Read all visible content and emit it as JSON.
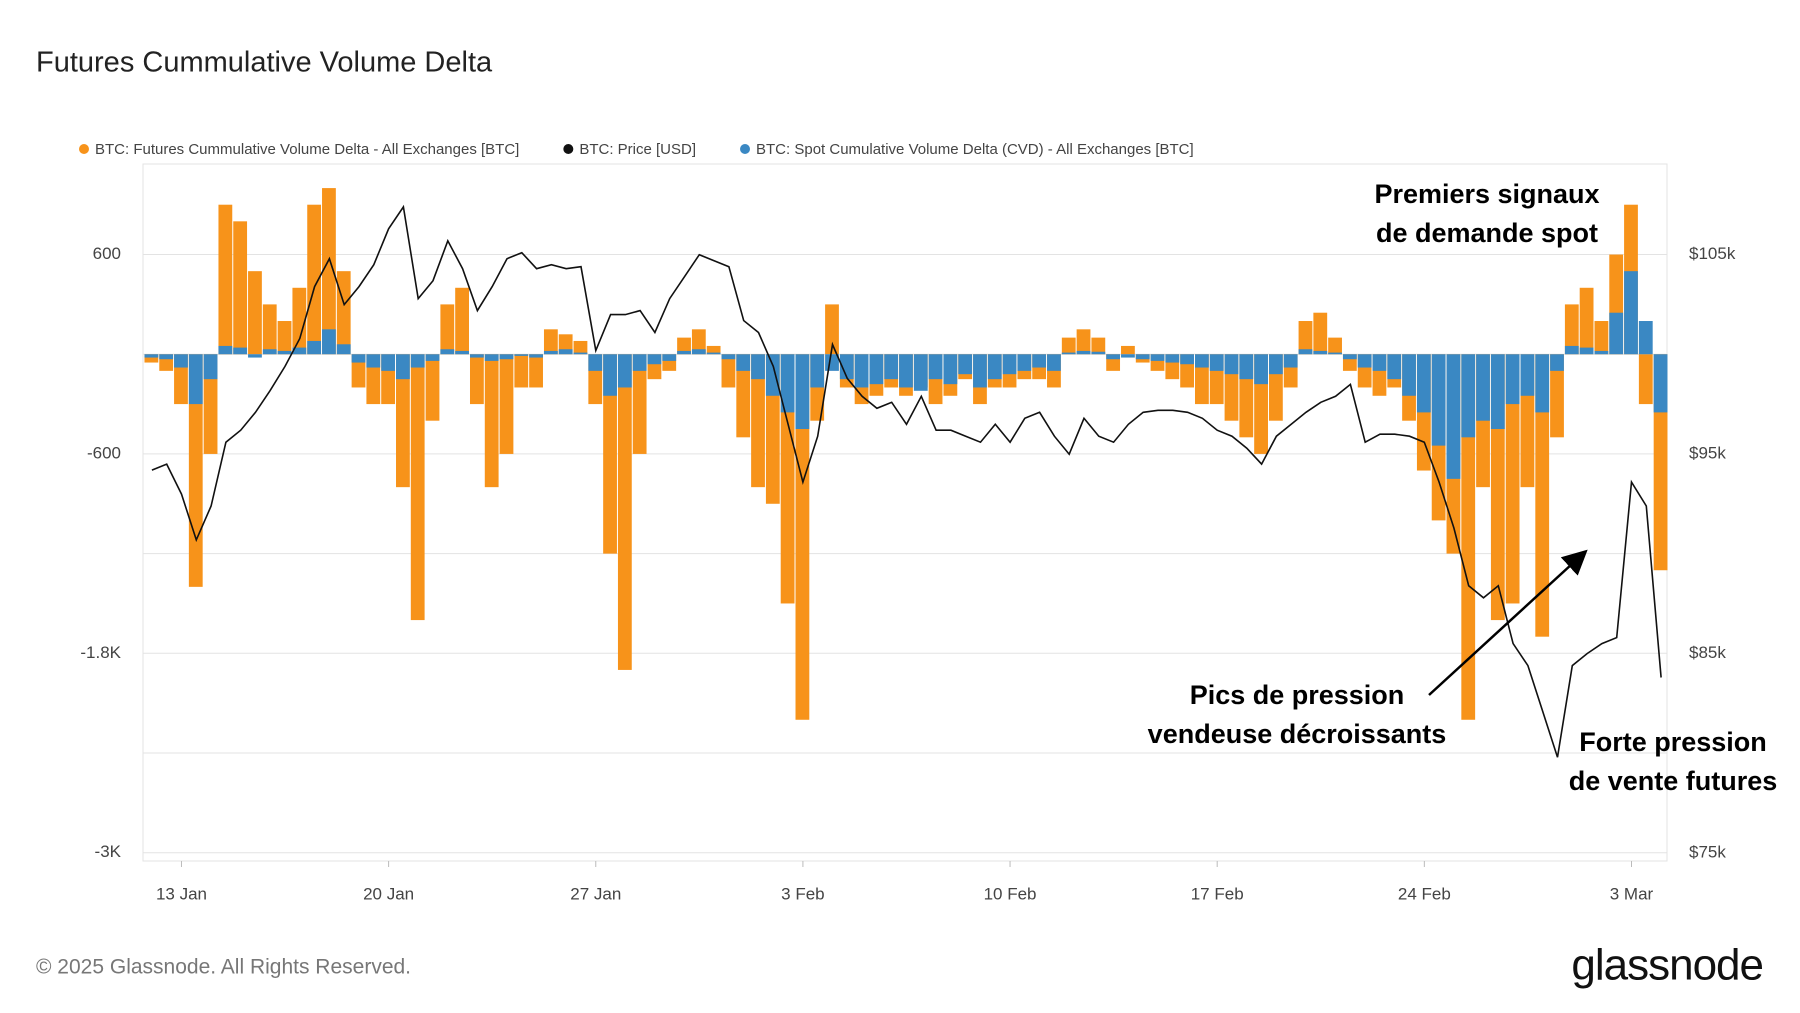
{
  "chart_data": {
    "type": "bar-line",
    "title": "Futures Cummulative Volume Delta",
    "x": [
      12,
      12.5,
      13,
      13.5,
      14,
      14.5,
      15,
      15.5,
      16,
      16.5,
      17,
      17.5,
      18,
      18.5,
      19,
      19.5,
      20,
      20.5,
      21,
      21.5,
      22,
      22.5,
      23,
      23.5,
      24,
      24.5,
      25,
      25.5,
      26,
      26.5,
      27,
      27.5,
      28,
      28.5,
      29,
      29.5,
      30,
      30.5,
      31,
      31.5,
      32,
      32.5,
      33,
      33.5,
      34,
      34.5,
      35,
      35.5,
      36,
      36.5,
      37,
      37.5,
      38,
      38.5,
      39,
      39.5,
      40,
      40.5,
      41,
      41.5,
      42,
      42.5,
      43,
      43.5,
      44,
      44.5,
      45,
      45.5,
      46,
      46.5,
      47,
      47.5,
      48,
      48.5,
      49,
      49.5,
      50,
      50.5,
      51,
      51.5,
      52,
      52.5,
      53,
      53.5,
      54,
      54.5,
      55,
      55.5,
      56,
      56.5,
      57,
      57.5,
      58,
      58.5,
      59,
      59.5,
      60,
      60.5,
      61,
      61.5,
      62,
      62.5,
      63
    ],
    "series": [
      {
        "name": "BTC: Futures Cummulative Volume Delta - All Exchanges [BTC]",
        "color": "#f7931a",
        "kind": "bar",
        "values": [
          -50,
          -100,
          -300,
          -1400,
          -600,
          900,
          800,
          500,
          300,
          200,
          400,
          900,
          1000,
          500,
          -200,
          -300,
          -300,
          -800,
          -1600,
          -400,
          300,
          400,
          -300,
          -800,
          -600,
          -200,
          -200,
          150,
          120,
          80,
          -300,
          -1200,
          -1900,
          -600,
          -150,
          -100,
          100,
          150,
          50,
          -200,
          -500,
          -800,
          -900,
          -1500,
          -2200,
          -400,
          300,
          -200,
          -300,
          -250,
          -200,
          -250,
          -200,
          -300,
          -250,
          -150,
          -300,
          -200,
          -200,
          -150,
          -150,
          -200,
          100,
          150,
          100,
          -100,
          50,
          -50,
          -100,
          -150,
          -200,
          -300,
          -300,
          -400,
          -500,
          -600,
          -400,
          -200,
          200,
          250,
          100,
          -100,
          -200,
          -250,
          -200,
          -400,
          -700,
          -1000,
          -1200,
          -2200,
          -800,
          -1600,
          -1500,
          -800,
          -1700,
          -500,
          300,
          400,
          200,
          600,
          900,
          -300,
          -1300
        ]
      },
      {
        "name": "BTC: Price [USD]",
        "color": "#111111",
        "kind": "line",
        "axis": "y2",
        "values": [
          94200,
          94500,
          93000,
          90700,
          92400,
          95600,
          96200,
          97100,
          98200,
          99400,
          100800,
          103400,
          104800,
          102500,
          103400,
          104500,
          106300,
          107400,
          102800,
          103700,
          105700,
          104300,
          102200,
          103400,
          104800,
          105100,
          104300,
          104500,
          104300,
          104400,
          100200,
          102000,
          102000,
          102200,
          101100,
          102800,
          103900,
          105000,
          104700,
          104400,
          101700,
          101100,
          99400,
          96500,
          93600,
          95900,
          100500,
          98800,
          97900,
          97300,
          97600,
          96500,
          97900,
          96200,
          96200,
          95900,
          95600,
          96500,
          95600,
          96800,
          97100,
          95900,
          95000,
          96800,
          95900,
          95600,
          96500,
          97100,
          97200,
          97200,
          97100,
          96800,
          96200,
          95900,
          95300,
          94500,
          95900,
          96500,
          97100,
          97600,
          97900,
          98500,
          95600,
          96000,
          96000,
          95900,
          95600,
          93600,
          91300,
          88400,
          87800,
          88400,
          85500,
          84400,
          82100,
          79800,
          84400,
          85000,
          85500,
          85800,
          93600,
          92400,
          83800
        ]
      },
      {
        "name": "BTC: Spot Cumulative Volume Delta (CVD) - All Exchanges [BTC]",
        "color": "#3a88c3",
        "kind": "bar",
        "values": [
          -20,
          -30,
          -80,
          -300,
          -150,
          50,
          40,
          -20,
          30,
          20,
          40,
          80,
          150,
          60,
          -50,
          -80,
          -100,
          -150,
          -80,
          -40,
          30,
          20,
          -20,
          -40,
          -30,
          -10,
          -20,
          20,
          30,
          10,
          -100,
          -250,
          -200,
          -100,
          -60,
          -40,
          20,
          30,
          10,
          -30,
          -100,
          -150,
          -250,
          -350,
          -450,
          -200,
          -100,
          -150,
          -200,
          -180,
          -150,
          -200,
          -220,
          -150,
          -180,
          -120,
          -200,
          -150,
          -120,
          -100,
          -80,
          -100,
          10,
          20,
          15,
          -30,
          -20,
          -30,
          -40,
          -50,
          -60,
          -80,
          -100,
          -120,
          -150,
          -180,
          -120,
          -80,
          30,
          20,
          10,
          -30,
          -80,
          -100,
          -150,
          -250,
          -350,
          -550,
          -750,
          -500,
          -400,
          -450,
          -300,
          -250,
          -350,
          -100,
          50,
          40,
          20,
          250,
          500,
          200,
          -350
        ]
      }
    ],
    "xlim": [
      11.7,
      63.2
    ],
    "xticks": [
      {
        "value": 13,
        "label": "13 Jan"
      },
      {
        "value": 20,
        "label": "20 Jan"
      },
      {
        "value": 27,
        "label": "27 Jan"
      },
      {
        "value": 34,
        "label": "3 Feb"
      },
      {
        "value": 41,
        "label": "10 Feb"
      },
      {
        "value": 48,
        "label": "17 Feb"
      },
      {
        "value": 55,
        "label": "24 Feb"
      },
      {
        "value": 62,
        "label": "3 Mar"
      }
    ],
    "ylim": [
      -3050,
      1145
    ],
    "yticks": [
      600,
      -600,
      {
        "value": -1800,
        "label": "-1.8K"
      },
      {
        "value": -3000,
        "label": "-3K"
      }
    ],
    "ygrid": [
      600,
      0,
      -600,
      -1200,
      -1800,
      -2400,
      -3000
    ],
    "y2lim": [
      74600,
      109550
    ],
    "y2ticks": [
      {
        "value": 105000,
        "label": "$105k"
      },
      {
        "value": 95000,
        "label": "$95k"
      },
      {
        "value": 85000,
        "label": "$85k"
      },
      {
        "value": 75000,
        "label": "$75k"
      }
    ],
    "legend": "top-left",
    "annotations": [
      {
        "lines": [
          "Premiers signaux",
          "de demande spot"
        ]
      },
      {
        "lines": [
          "Pics de pression",
          "vendeuse décroissants"
        ]
      },
      {
        "lines": [
          "Forte pression",
          "de vente futures"
        ]
      }
    ]
  },
  "footer": {
    "copyright": "© 2025 Glassnode. All Rights Reserved.",
    "logo": "glassnode"
  }
}
